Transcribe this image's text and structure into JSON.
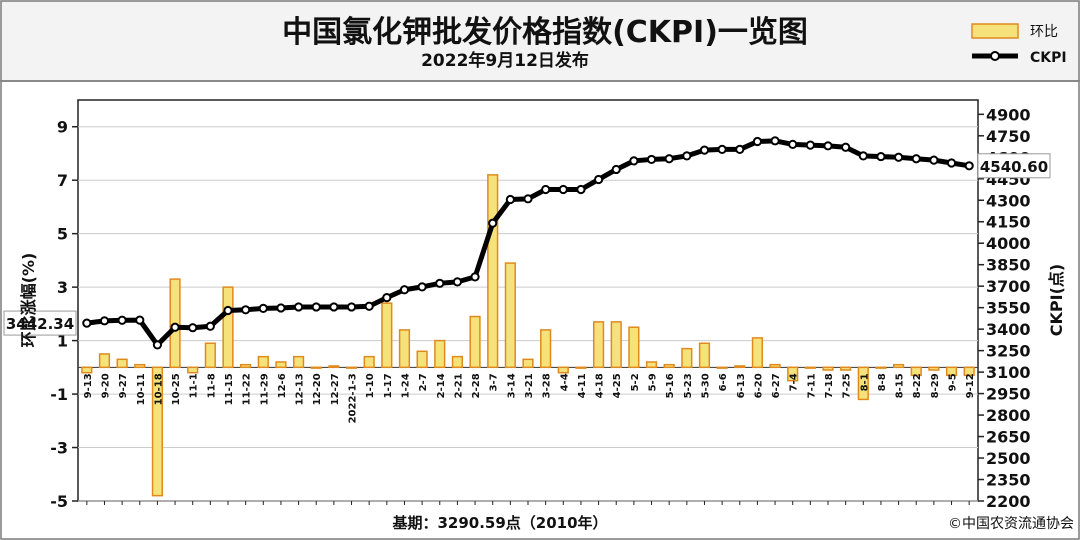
{
  "header": {
    "title": "中国氯化钾批发价格指数(CKPI)一览图",
    "subtitle": "2022年9月12日发布"
  },
  "legend": {
    "position": "top-right",
    "items": [
      {
        "label": "环比",
        "kind": "bar",
        "fill": "#f6e27a",
        "stroke": "#e08a1e"
      },
      {
        "label": "CKPI",
        "kind": "line",
        "color": "#000000"
      }
    ]
  },
  "footer": {
    "base": "基期：3290.59点（2010年）",
    "copyright": "©中国农资流通协会"
  },
  "colors": {
    "bar_fill": "#f6e27a",
    "bar_stroke": "#e08a1e",
    "line": "#000000",
    "header_bg": "#f3f3f3",
    "plot_bg": "#ffffff",
    "grid": "#cccccc"
  },
  "chart_data": {
    "type": "bar+line",
    "grid": true,
    "x_tick_labels": [
      "9-13",
      "9-20",
      "9-27",
      "10-11",
      "10-18",
      "10-25",
      "11-1",
      "11-8",
      "11-15",
      "11-22",
      "11-29",
      "12-6",
      "12-13",
      "12-20",
      "12-27",
      "2022-1-3",
      "1-10",
      "1-17",
      "1-24",
      "2-7",
      "2-14",
      "2-21",
      "2-28",
      "3-7",
      "3-14",
      "3-21",
      "3-28",
      "4-4",
      "4-11",
      "4-18",
      "4-25",
      "5-2",
      "5-9",
      "5-16",
      "5-23",
      "5-30",
      "6-6",
      "6-13",
      "6-20",
      "6-27",
      "7-4",
      "7-11",
      "7-18",
      "7-25",
      "8-1",
      "8-8",
      "8-15",
      "8-22",
      "8-29",
      "9-5",
      "9-12"
    ],
    "left_axis": {
      "label": "环比涨幅(%)",
      "min": -5,
      "max": 10,
      "ticks": [
        9,
        7,
        5,
        3,
        1,
        -1,
        -3,
        -5
      ]
    },
    "right_axis": {
      "label": "CKPI(点)",
      "min": 2200,
      "max": 5000,
      "ticks": [
        4900,
        4750,
        4600,
        4450,
        4300,
        4150,
        4000,
        3850,
        3700,
        3550,
        3400,
        3250,
        3100,
        2950,
        2800,
        2650,
        2500,
        2350,
        2200
      ]
    },
    "series": [
      {
        "name": "环比",
        "type": "bar",
        "axis": "left",
        "values": [
          -0.2,
          0.5,
          0.3,
          0.1,
          -4.8,
          3.3,
          -0.2,
          0.9,
          3.0,
          0.1,
          0.4,
          0.2,
          0.4,
          0.0,
          0.05,
          0.0,
          0.4,
          2.4,
          1.4,
          0.6,
          1.0,
          0.4,
          1.9,
          7.2,
          3.9,
          0.3,
          1.4,
          -0.2,
          0.0,
          1.7,
          1.7,
          1.5,
          0.2,
          0.1,
          0.7,
          0.9,
          0.0,
          0.05,
          1.1,
          0.1,
          -0.5,
          0.0,
          -0.1,
          -0.1,
          -1.2,
          0.0,
          0.1,
          -0.3,
          -0.1,
          -0.3,
          -0.3
        ]
      },
      {
        "name": "CKPI",
        "type": "line",
        "axis": "right",
        "values": [
          3442,
          3458,
          3462,
          3463,
          3290,
          3413,
          3410,
          3420,
          3530,
          3535,
          3545,
          3548,
          3555,
          3555,
          3555,
          3555,
          3560,
          3620,
          3675,
          3695,
          3720,
          3730,
          3765,
          4140,
          4305,
          4310,
          4375,
          4375,
          4375,
          4445,
          4515,
          4575,
          4585,
          4590,
          4610,
          4650,
          4655,
          4655,
          4710,
          4715,
          4690,
          4685,
          4680,
          4670,
          4610,
          4605,
          4600,
          4590,
          4580,
          4560,
          4540.6
        ]
      }
    ],
    "annotations": [
      {
        "label": "3442.34",
        "value": 3442.34,
        "side": "left"
      },
      {
        "label": "4540.60",
        "value": 4540.6,
        "side": "right"
      }
    ]
  }
}
